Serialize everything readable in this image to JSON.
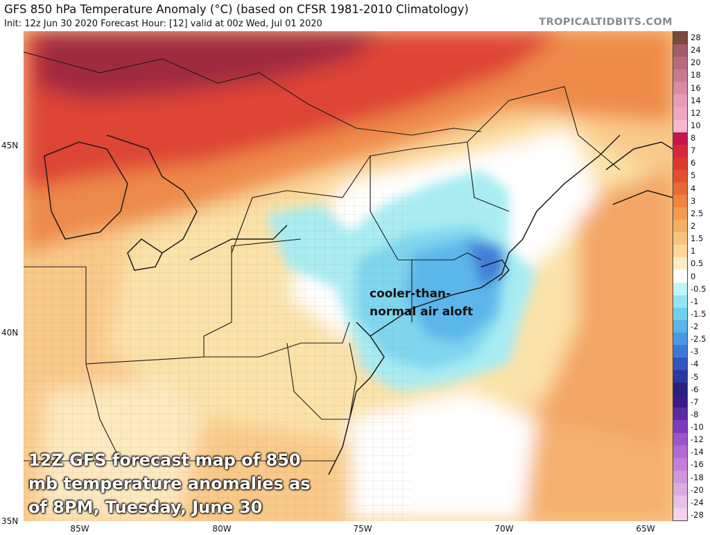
{
  "header": {
    "title": "GFS 850 hPa Temperature Anomaly (°C) (based on CFSR 1981-2010 Climatology)",
    "subtitle": "Init: 12z Jun 30 2020   Forecast Hour: [12]   valid at 00z Wed, Jul 01 2020",
    "site": "TROPICALTIDBITS.COM"
  },
  "axes": {
    "lat_labels": [
      "45N",
      "40N",
      "35N"
    ],
    "lon_labels": [
      "85W",
      "80W",
      "75W",
      "70W",
      "65W"
    ]
  },
  "colorbar": {
    "labels": [
      "28",
      "24",
      "20",
      "18",
      "16",
      "14",
      "12",
      "10",
      "8",
      "7",
      "6",
      "5",
      "4",
      "3",
      "2.5",
      "2",
      "1.5",
      "1",
      "0.5",
      "0",
      "-0.5",
      "-1",
      "-1.5",
      "-2",
      "-2.5",
      "-3",
      "-4",
      "-5",
      "-6",
      "-7",
      "-8",
      "-10",
      "-12",
      "-14",
      "-16",
      "-18",
      "-20",
      "-24",
      "-28"
    ],
    "colors": [
      "#7a4a3a",
      "#a35a6a",
      "#b96a80",
      "#c97a92",
      "#d98aa5",
      "#e69cb6",
      "#f0a8c3",
      "#f5b9d0",
      "#c4164a",
      "#d42a3c",
      "#dc3a2c",
      "#e25030",
      "#e86a36",
      "#ee8440",
      "#f29a52",
      "#f5b066",
      "#f8c47c",
      "#fbd898",
      "#fdebc3",
      "#ffffff",
      "#bdf6f6",
      "#93e6f0",
      "#6fd0ec",
      "#5ab5ea",
      "#4a98e6",
      "#3d78d8",
      "#3156bf",
      "#2a3aa0",
      "#2a2080",
      "#3a1a8c",
      "#5a2aa4",
      "#7a3cbc",
      "#9a56cc",
      "#b06ad4",
      "#c27ed8",
      "#d096dc",
      "#dcabe0",
      "#e6c0e6",
      "#efd4ec"
    ]
  },
  "annotation": {
    "line1": "cooler-than-",
    "line2": "normal air aloft"
  },
  "caption": {
    "line1": "12Z GFS forecast map of 850",
    "line2": "mb temperature anomalies as",
    "line3": "of 8PM, Tuesday, June 30"
  }
}
